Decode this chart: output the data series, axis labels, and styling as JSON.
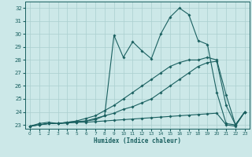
{
  "xlabel": "Humidex (Indice chaleur)",
  "bg_color": "#cce8e8",
  "line_color": "#1a6060",
  "grid_color": "#aacfcf",
  "xlim": [
    -0.5,
    23.5
  ],
  "ylim": [
    22.7,
    32.5
  ],
  "xticks": [
    0,
    1,
    2,
    3,
    4,
    5,
    6,
    7,
    8,
    9,
    10,
    11,
    12,
    13,
    14,
    15,
    16,
    17,
    18,
    19,
    20,
    21,
    22,
    23
  ],
  "yticks": [
    23,
    24,
    25,
    26,
    27,
    28,
    29,
    30,
    31,
    32
  ],
  "series": [
    {
      "x": [
        0,
        1,
        2,
        3,
        4,
        5,
        6,
        7,
        8,
        9,
        10,
        11,
        12,
        13,
        14,
        15,
        16,
        17,
        18,
        19,
        20,
        21,
        22,
        23
      ],
      "y": [
        22.9,
        23.1,
        23.2,
        23.1,
        23.15,
        23.2,
        23.2,
        23.25,
        23.3,
        23.35,
        23.4,
        23.45,
        23.5,
        23.55,
        23.6,
        23.65,
        23.7,
        23.75,
        23.8,
        23.85,
        23.9,
        23.0,
        22.9,
        24.0
      ]
    },
    {
      "x": [
        0,
        1,
        2,
        3,
        4,
        5,
        6,
        7,
        8,
        9,
        10,
        11,
        12,
        13,
        14,
        15,
        16,
        17,
        18,
        19,
        20,
        21,
        22,
        23
      ],
      "y": [
        22.9,
        23.0,
        23.1,
        23.1,
        23.15,
        23.2,
        23.3,
        23.4,
        23.7,
        29.9,
        28.2,
        29.4,
        28.7,
        28.1,
        30.0,
        31.3,
        32.0,
        31.5,
        29.5,
        29.2,
        25.5,
        23.1,
        23.0,
        24.0
      ]
    },
    {
      "x": [
        0,
        1,
        2,
        3,
        4,
        5,
        6,
        7,
        8,
        9,
        10,
        11,
        12,
        13,
        14,
        15,
        16,
        17,
        18,
        19,
        20,
        21,
        22,
        23
      ],
      "y": [
        22.9,
        23.0,
        23.1,
        23.1,
        23.2,
        23.3,
        23.5,
        23.7,
        24.1,
        24.5,
        25.0,
        25.5,
        26.0,
        26.5,
        27.0,
        27.5,
        27.8,
        28.0,
        28.0,
        28.2,
        28.0,
        25.3,
        23.0,
        24.0
      ]
    },
    {
      "x": [
        0,
        1,
        2,
        3,
        4,
        5,
        6,
        7,
        8,
        9,
        10,
        11,
        12,
        13,
        14,
        15,
        16,
        17,
        18,
        19,
        20,
        21,
        22,
        23
      ],
      "y": [
        22.9,
        23.0,
        23.1,
        23.1,
        23.2,
        23.25,
        23.3,
        23.5,
        23.7,
        23.9,
        24.2,
        24.4,
        24.7,
        25.0,
        25.5,
        26.0,
        26.5,
        27.0,
        27.5,
        27.8,
        27.9,
        24.5,
        23.0,
        24.0
      ]
    }
  ]
}
